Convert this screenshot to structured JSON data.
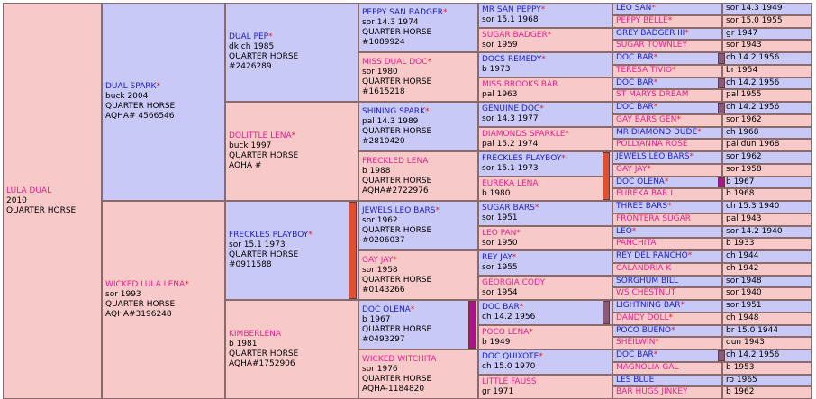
{
  "subject": {
    "name": "LULA DUAL",
    "line2": "2010",
    "line3": "QUARTER HORSE"
  },
  "g1": [
    {
      "name": "DUAL SPARK",
      "star": true,
      "sex": "m",
      "lines": [
        "buck 2004",
        "QUARTER HORSE",
        "AQHA# 4566546"
      ]
    },
    {
      "name": "WICKED LULA LENA",
      "star": true,
      "sex": "f",
      "lines": [
        "sor 1993",
        "QUARTER HORSE",
        "AQHA#3196248"
      ]
    }
  ],
  "g2": [
    {
      "name": "DUAL PEP",
      "star": true,
      "sex": "m",
      "lines": [
        "dk ch 1985",
        "QUARTER HORSE",
        "#2426289"
      ]
    },
    {
      "name": "DOLITTLE LENA",
      "star": true,
      "sex": "f",
      "lines": [
        "buck 1997",
        "QUARTER HORSE",
        "AQHA #"
      ]
    },
    {
      "name": "FRECKLES PLAYBOY",
      "star": true,
      "sex": "m",
      "lines": [
        "sor 15.1 1973",
        "QUARTER HORSE",
        "#0911588"
      ]
    },
    {
      "name": "KIMBERLENA",
      "star": false,
      "sex": "f",
      "lines": [
        "b 1981",
        "QUARTER HORSE",
        "AQHA#1752906"
      ]
    }
  ],
  "g3": [
    {
      "name": "PEPPY SAN BADGER",
      "star": true,
      "sex": "m",
      "lines": [
        "sor 14.3 1974",
        "QUARTER HORSE",
        "#1089924"
      ]
    },
    {
      "name": "MISS DUAL DOC",
      "star": true,
      "sex": "f",
      "lines": [
        "sor 1980",
        "QUARTER HORSE",
        "#1615218"
      ]
    },
    {
      "name": "SHINING SPARK",
      "star": true,
      "sex": "m",
      "lines": [
        "pal 14.3 1989",
        "QUARTER HORSE",
        "#2810420"
      ]
    },
    {
      "name": "FRECKLED LENA",
      "star": false,
      "sex": "f",
      "lines": [
        "b 1988",
        "QUARTER HORSE",
        "AQHA#2722976"
      ]
    },
    {
      "name": "JEWELS LEO BARS",
      "star": true,
      "sex": "m",
      "lines": [
        "sor 1962",
        "QUARTER HORSE",
        "#0206037"
      ]
    },
    {
      "name": "GAY JAY",
      "star": true,
      "sex": "f",
      "lines": [
        "sor 1958",
        "QUARTER HORSE",
        "#0143266"
      ]
    },
    {
      "name": "DOC OLENA",
      "star": true,
      "sex": "m",
      "lines": [
        "b 1967",
        "QUARTER HORSE",
        "#0493297"
      ]
    },
    {
      "name": "WICKED WITCHITA",
      "star": false,
      "sex": "f",
      "lines": [
        "sor 1976",
        "QUARTER HORSE",
        "AQHA-1184820"
      ]
    }
  ],
  "g4": [
    {
      "name": "MR SAN PEPPY",
      "star": true,
      "sex": "m",
      "detail": "sor 15.1 1968"
    },
    {
      "name": "SUGAR BADGER",
      "star": true,
      "sex": "f",
      "detail": "sor 1959"
    },
    {
      "name": "DOCS REMEDY",
      "star": true,
      "sex": "m",
      "detail": "b 1973"
    },
    {
      "name": "MISS BROOKS BAR",
      "star": false,
      "sex": "f",
      "detail": "pal 1963"
    },
    {
      "name": "GENUINE DOC",
      "star": true,
      "sex": "m",
      "detail": "sor 14.3 1977"
    },
    {
      "name": "DIAMONDS SPARKLE",
      "star": true,
      "sex": "f",
      "detail": "pal 15.2 1974"
    },
    {
      "name": "FRECKLES PLAYBOY",
      "star": true,
      "sex": "m",
      "detail": "sor 15.1 1973"
    },
    {
      "name": "EUREKA LENA",
      "star": false,
      "sex": "f",
      "detail": "b 1980"
    },
    {
      "name": "SUGAR BARS",
      "star": true,
      "sex": "m",
      "detail": "sor 1951"
    },
    {
      "name": "LEO PAN",
      "star": true,
      "sex": "f",
      "detail": "sor 1950"
    },
    {
      "name": "REY JAY",
      "star": true,
      "sex": "m",
      "detail": "sor 1955"
    },
    {
      "name": "GEORGIA CODY",
      "star": false,
      "sex": "f",
      "detail": "sor 1954"
    },
    {
      "name": "DOC BAR",
      "star": true,
      "sex": "m",
      "detail": "ch 14.2 1956"
    },
    {
      "name": "POCO LENA",
      "star": true,
      "sex": "f",
      "detail": "b 1949"
    },
    {
      "name": "DOC QUIXOTE",
      "star": true,
      "sex": "m",
      "detail": "ch 15.0 1970"
    },
    {
      "name": "LITTLE FAUSS",
      "star": false,
      "sex": "f",
      "detail": "gr 1971"
    }
  ],
  "g5": [
    {
      "name": "LEO SAN",
      "star": true,
      "sex": "m",
      "detail": "sor 14.3 1949"
    },
    {
      "name": "PEPPY BELLE",
      "star": true,
      "sex": "f",
      "detail": "sor 15.0 1955"
    },
    {
      "name": "GREY BADGER III",
      "star": true,
      "sex": "m",
      "detail": "gr 1947"
    },
    {
      "name": "SUGAR TOWNLEY",
      "star": false,
      "sex": "f",
      "detail": "sor 1943"
    },
    {
      "name": "DOC BAR",
      "star": true,
      "sex": "m",
      "detail": "ch 14.2 1956"
    },
    {
      "name": "TERESA TIVIO",
      "star": true,
      "sex": "f",
      "detail": "br 1954"
    },
    {
      "name": "DOC BAR",
      "star": true,
      "sex": "m",
      "detail": "ch 14.2 1956"
    },
    {
      "name": "ST MARYS DREAM",
      "star": false,
      "sex": "f",
      "detail": "pal 1955"
    },
    {
      "name": "DOC BAR",
      "star": true,
      "sex": "m",
      "detail": "ch 14.2 1956"
    },
    {
      "name": "GAY BARS GEN",
      "star": true,
      "sex": "f",
      "detail": "sor 1962"
    },
    {
      "name": "MR DIAMOND DUDE",
      "star": true,
      "sex": "m",
      "detail": "ch 1968"
    },
    {
      "name": "POLLYANNA ROSE",
      "star": false,
      "sex": "f",
      "detail": "pal dun 1968"
    },
    {
      "name": "JEWELS LEO BARS",
      "star": true,
      "sex": "m",
      "detail": "sor 1962"
    },
    {
      "name": "GAY JAY",
      "star": true,
      "sex": "f",
      "detail": "sor 1958"
    },
    {
      "name": "DOC OLENA",
      "star": true,
      "sex": "m",
      "detail": "b 1967"
    },
    {
      "name": "EUREKA BAR I",
      "star": false,
      "sex": "f",
      "detail": "b 1968"
    },
    {
      "name": "THREE BARS",
      "star": true,
      "sex": "m",
      "detail": "ch 15.3 1940"
    },
    {
      "name": "FRONTERA SUGAR",
      "star": false,
      "sex": "f",
      "detail": "pal 1943"
    },
    {
      "name": "LEO",
      "star": true,
      "sex": "m",
      "detail": "sor 14.2 1940"
    },
    {
      "name": "PANCHITA",
      "star": false,
      "sex": "f",
      "detail": "b 1933"
    },
    {
      "name": "REY DEL RANCHO",
      "star": true,
      "sex": "m",
      "detail": "ch 1944"
    },
    {
      "name": "CALANDRIA K",
      "star": false,
      "sex": "f",
      "detail": "ch 1942"
    },
    {
      "name": "SORGHUM BILL",
      "star": false,
      "sex": "m",
      "detail": "sor 1948"
    },
    {
      "name": "WS CHESTNUT",
      "star": false,
      "sex": "f",
      "detail": "sor 1940"
    },
    {
      "name": "LIGHTNING BAR",
      "star": true,
      "sex": "m",
      "detail": "sor 1951"
    },
    {
      "name": "DANDY DOLL",
      "star": true,
      "sex": "f",
      "detail": "ch 1948"
    },
    {
      "name": "POCO BUENO",
      "star": true,
      "sex": "m",
      "detail": "br 15.0 1944"
    },
    {
      "name": "SHEILWIN",
      "star": true,
      "sex": "f",
      "detail": "dun 1943"
    },
    {
      "name": "DOC BAR",
      "star": true,
      "sex": "m",
      "detail": "ch 14.2 1956"
    },
    {
      "name": "MAGNOLIA GAL",
      "star": false,
      "sex": "f",
      "detail": "b 1953"
    },
    {
      "name": "LES BLUE",
      "star": false,
      "sex": "m",
      "detail": "ro 1965"
    },
    {
      "name": "BAR HUGS JINKEY",
      "star": false,
      "sex": "f",
      "detail": "b 1962"
    }
  ],
  "star_symbol": "*",
  "colors": {
    "male_bg": "#c9c9f8",
    "female_bg": "#f8c9c9",
    "male_text": "#2020c8",
    "female_text": "#e8208c",
    "star": "#e02020",
    "inbreed_red": "#e05030",
    "inbreed_magenta": "#b0108c",
    "inbreed_brown": "#8a5a7a"
  }
}
